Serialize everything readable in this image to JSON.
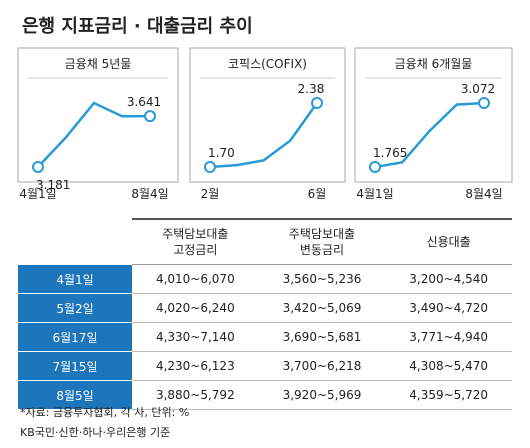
{
  "title": "은행 지표금리 · 대출금리 추이",
  "chart_data": [
    {
      "type": "line",
      "title": "금융채 5년물",
      "color": "#2a9ad6",
      "categories": [
        "4월1일",
        null,
        null,
        null,
        "8월4일"
      ],
      "values": [
        3.181,
        3.45,
        3.76,
        3.64,
        3.641
      ],
      "value_labels": [
        "3.181",
        null,
        null,
        null,
        "3.641"
      ]
    },
    {
      "type": "line",
      "title": "코픽스(COFIX)",
      "color": "#2a9ad6",
      "categories": [
        "2월",
        null,
        null,
        null,
        "6월"
      ],
      "values": [
        1.7,
        1.72,
        1.77,
        1.98,
        2.38
      ],
      "value_labels": [
        "1.70",
        null,
        null,
        null,
        "2.38"
      ]
    },
    {
      "type": "line",
      "title": "금융채 6개월물",
      "color": "#2a9ad6",
      "categories": [
        "4월1일",
        null,
        null,
        null,
        "8월4일"
      ],
      "values": [
        1.765,
        1.86,
        2.5,
        3.04,
        3.072
      ],
      "value_labels": [
        "1.765",
        null,
        null,
        null,
        "3.072"
      ]
    }
  ],
  "table": {
    "header": [
      "주택담보대출\n고정금리",
      "주택담보대출\n변동금리",
      "신용대출"
    ],
    "rows": [
      [
        "4월1일",
        "4,010~6,070",
        "3,560~5,236",
        "3,200~4,540"
      ],
      [
        "5월2일",
        "4,020~6,240",
        "3,420~5,069",
        "3,490~4,720"
      ],
      [
        "6월17일",
        "4,330~7,140",
        "3,690~5,681",
        "3,771~4,940"
      ],
      [
        "7월15일",
        "4,230~6,123",
        "3,700~6,218",
        "4,308~5,470"
      ],
      [
        "8월5일",
        "3,880~5,792",
        "3,920~5,969",
        "4,359~5,720"
      ]
    ]
  },
  "notes": [
    "*자료: 금융투자협회, 각 사, 단위: %",
    "KB국민·신한·하나·우리은행 기준"
  ]
}
